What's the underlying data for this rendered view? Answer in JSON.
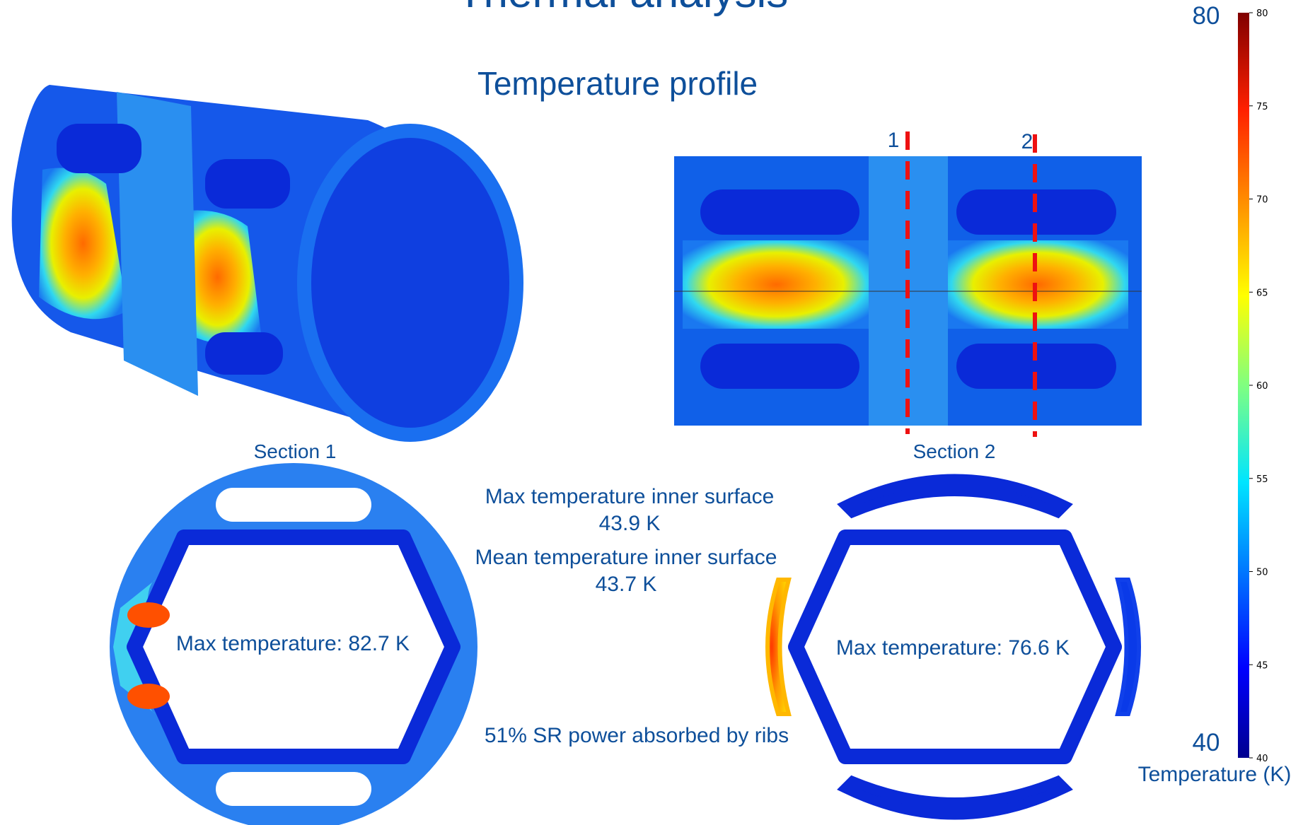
{
  "header": {
    "title": "Thermal analysis",
    "subtitle": "Temperature profile"
  },
  "side_view": {
    "cut_labels": [
      "1",
      "2"
    ]
  },
  "sections": [
    {
      "label": "Section 1",
      "max_temperature": "Max temperature: 82.7 K"
    },
    {
      "label": "Section 2",
      "max_temperature": "Max temperature: 76.6 K"
    }
  ],
  "notes": {
    "max_inner_label": "Max temperature inner surface",
    "max_inner_value": "43.9 K",
    "mean_inner_label": "Mean temperature inner surface",
    "mean_inner_value": "43.7 K",
    "ribs": "51% SR power absorbed by ribs"
  },
  "colorbar": {
    "min": 40,
    "max": 80,
    "ticks": [
      40,
      45,
      50,
      55,
      60,
      65,
      70,
      75,
      80
    ],
    "label": "Temperature (K)"
  }
}
